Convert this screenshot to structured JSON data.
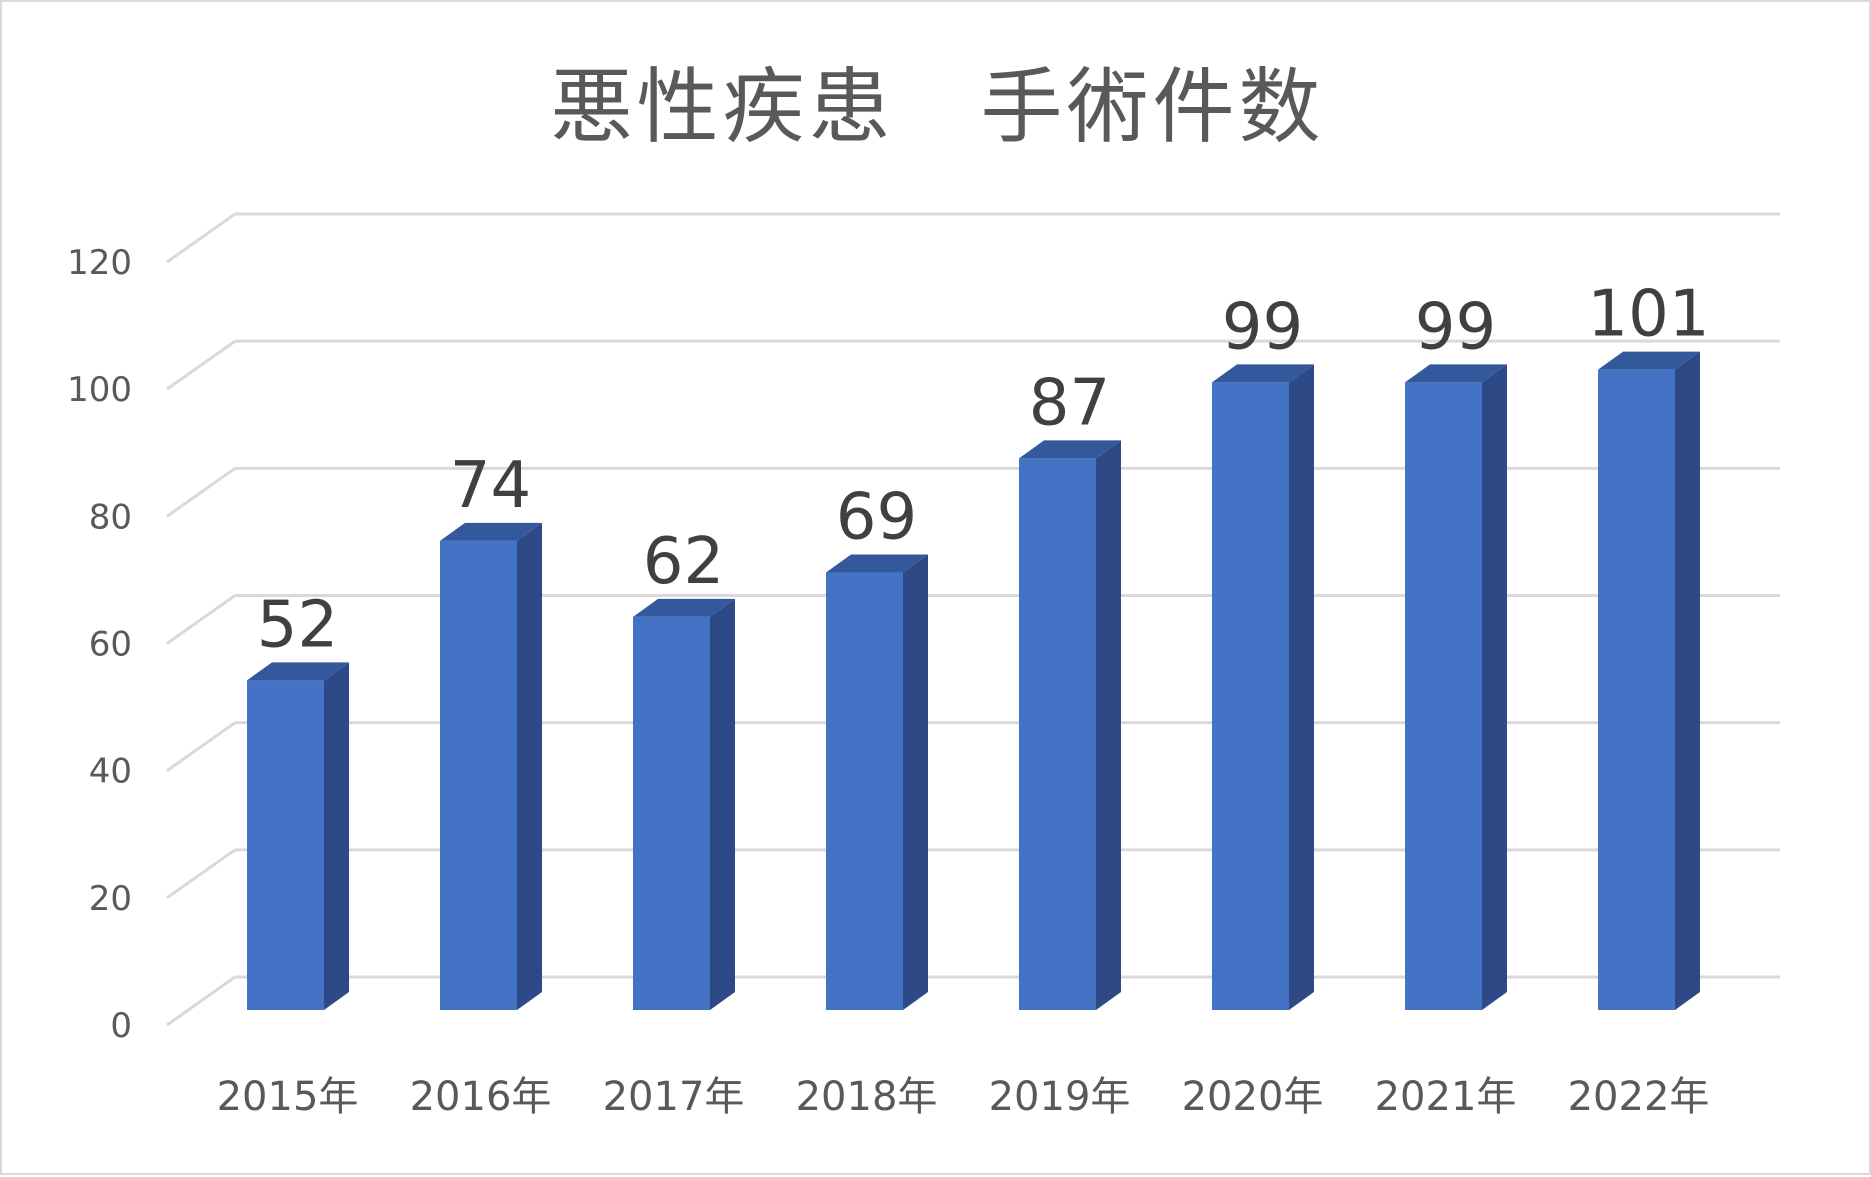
{
  "chart_data": {
    "type": "bar",
    "title": "悪性疾患　手術件数",
    "categories": [
      "2015年",
      "2016年",
      "2017年",
      "2018年",
      "2019年",
      "2020年",
      "2021年",
      "2022年"
    ],
    "values": [
      52,
      74,
      62,
      69,
      87,
      99,
      99,
      101
    ],
    "ylim": [
      0,
      120
    ],
    "yticks": [
      0,
      20,
      40,
      60,
      80,
      100,
      120
    ],
    "grid": true,
    "legend": "none",
    "style": "3d-column",
    "colors": {
      "bar_front": "#4472c4",
      "bar_side": "#2d4a86",
      "bar_top": "#34589c",
      "grid": "#d9d9d9"
    }
  }
}
